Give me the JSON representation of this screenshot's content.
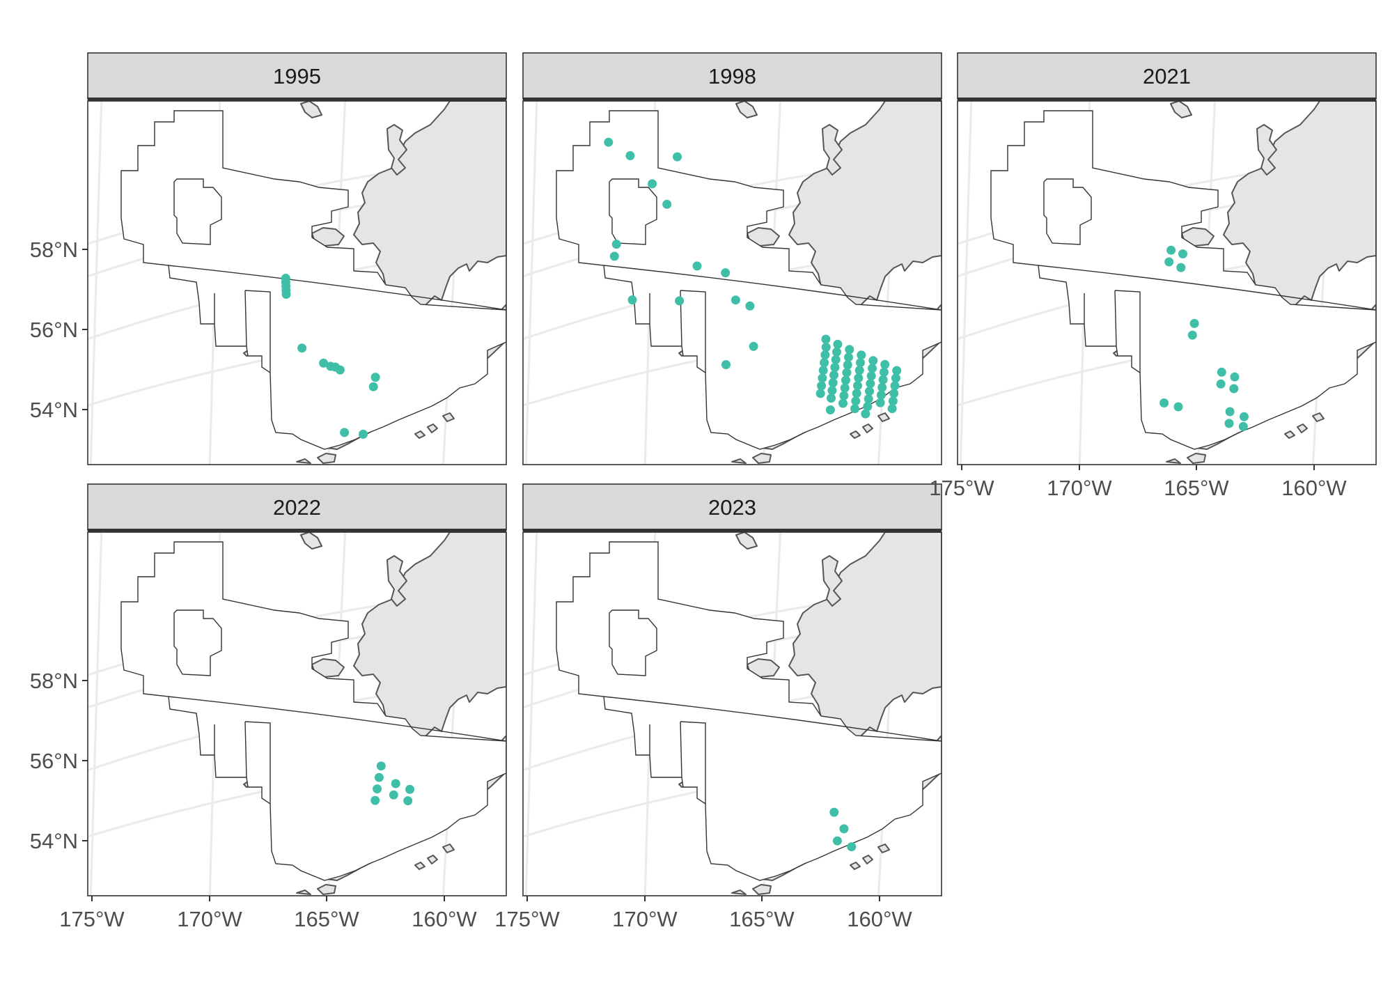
{
  "colors": {
    "point": "#3fbfa8",
    "land": "#e5e5e5",
    "strip": "#d9d9d9",
    "grid": "#ebebeb"
  },
  "chart_data": {
    "type": "map",
    "projection": "conic (Bering Sea)",
    "xlim": [
      -175,
      -157
    ],
    "ylim": [
      52.5,
      60.5
    ],
    "lon_ticks": [
      -175,
      -170,
      -165,
      -160
    ],
    "lon_tick_labels": [
      "175°W",
      "170°W",
      "165°W",
      "160°W"
    ],
    "lat_ticks": [
      54,
      56,
      58
    ],
    "lat_tick_labels": [
      "54°N",
      "56°N",
      "58°N"
    ],
    "panels": [
      {
        "year": "1995",
        "points": [
          [
            -166.6,
            57.15
          ],
          [
            -166.6,
            57.05
          ],
          [
            -166.6,
            56.95
          ],
          [
            -166.6,
            56.85
          ],
          [
            -166.6,
            56.75
          ],
          [
            -166.0,
            55.45
          ],
          [
            -165.1,
            55.15
          ],
          [
            -164.8,
            55.1
          ],
          [
            -164.6,
            55.1
          ],
          [
            -164.4,
            55.05
          ],
          [
            -162.9,
            55.05
          ],
          [
            -163.0,
            54.8
          ],
          [
            -164.3,
            53.5
          ],
          [
            -163.5,
            53.55
          ]
        ]
      },
      {
        "year": "1998",
        "points": [
          [
            -171.2,
            60.45
          ],
          [
            -170.3,
            60.1
          ],
          [
            -168.3,
            60.1
          ],
          [
            -169.4,
            59.4
          ],
          [
            -168.8,
            58.9
          ],
          [
            -171.0,
            57.9
          ],
          [
            -171.1,
            57.6
          ],
          [
            -167.6,
            57.4
          ],
          [
            -166.4,
            57.3
          ],
          [
            -170.4,
            56.5
          ],
          [
            -168.4,
            56.5
          ],
          [
            -166.0,
            56.65
          ],
          [
            -165.4,
            56.55
          ],
          [
            -165.3,
            55.55
          ],
          [
            -166.5,
            55.0
          ],
          [
            -162.2,
            56.1
          ],
          [
            -162.2,
            55.9
          ],
          [
            -162.25,
            55.7
          ],
          [
            -162.3,
            55.5
          ],
          [
            -162.35,
            55.3
          ],
          [
            -162.4,
            55.1
          ],
          [
            -162.45,
            54.9
          ],
          [
            -162.5,
            54.7
          ],
          [
            -161.7,
            56.05
          ],
          [
            -161.75,
            55.85
          ],
          [
            -161.8,
            55.65
          ],
          [
            -161.85,
            55.45
          ],
          [
            -161.9,
            55.25
          ],
          [
            -161.95,
            55.05
          ],
          [
            -162.0,
            54.85
          ],
          [
            -162.05,
            54.65
          ],
          [
            -161.2,
            56.0
          ],
          [
            -161.25,
            55.8
          ],
          [
            -161.3,
            55.6
          ],
          [
            -161.35,
            55.4
          ],
          [
            -161.4,
            55.2
          ],
          [
            -161.45,
            55.0
          ],
          [
            -161.5,
            54.8
          ],
          [
            -161.55,
            54.6
          ],
          [
            -160.7,
            55.95
          ],
          [
            -160.75,
            55.75
          ],
          [
            -160.8,
            55.55
          ],
          [
            -160.85,
            55.35
          ],
          [
            -160.9,
            55.15
          ],
          [
            -160.95,
            54.95
          ],
          [
            -161.0,
            54.75
          ],
          [
            -161.05,
            54.55
          ],
          [
            -160.2,
            55.9
          ],
          [
            -160.25,
            55.7
          ],
          [
            -160.3,
            55.5
          ],
          [
            -160.35,
            55.3
          ],
          [
            -160.4,
            55.1
          ],
          [
            -160.45,
            54.9
          ],
          [
            -160.5,
            54.7
          ],
          [
            -159.7,
            55.9
          ],
          [
            -159.75,
            55.7
          ],
          [
            -159.8,
            55.5
          ],
          [
            -159.85,
            55.3
          ],
          [
            -159.9,
            55.1
          ],
          [
            -159.95,
            54.9
          ],
          [
            -159.2,
            55.85
          ],
          [
            -159.25,
            55.65
          ],
          [
            -159.3,
            55.45
          ],
          [
            -159.35,
            55.25
          ],
          [
            -159.4,
            55.05
          ],
          [
            -159.45,
            54.85
          ],
          [
            -162.1,
            54.35
          ],
          [
            -160.6,
            54.5
          ]
        ]
      },
      {
        "year": "2021",
        "points": [
          [
            -165.9,
            57.9
          ],
          [
            -165.4,
            57.85
          ],
          [
            -166.0,
            57.6
          ],
          [
            -165.5,
            57.5
          ],
          [
            -165.0,
            56.15
          ],
          [
            -165.1,
            55.85
          ],
          [
            -163.9,
            55.05
          ],
          [
            -163.35,
            55.0
          ],
          [
            -163.95,
            54.75
          ],
          [
            -163.4,
            54.7
          ],
          [
            -163.6,
            54.1
          ],
          [
            -163.0,
            54.05
          ],
          [
            -163.65,
            53.8
          ],
          [
            -163.05,
            53.8
          ],
          [
            -166.4,
            54.05
          ],
          [
            -165.8,
            54.0
          ]
        ]
      },
      {
        "year": "2022",
        "points": [
          [
            -162.6,
            56.15
          ],
          [
            -162.7,
            55.85
          ],
          [
            -162.0,
            55.8
          ],
          [
            -161.4,
            55.75
          ],
          [
            -162.8,
            55.55
          ],
          [
            -162.1,
            55.5
          ],
          [
            -161.5,
            55.45
          ],
          [
            -162.9,
            55.25
          ]
        ]
      },
      {
        "year": "2023",
        "points": [
          [
            -161.9,
            55.1
          ],
          [
            -161.5,
            54.75
          ],
          [
            -161.8,
            54.4
          ],
          [
            -161.2,
            54.35
          ]
        ]
      }
    ]
  }
}
